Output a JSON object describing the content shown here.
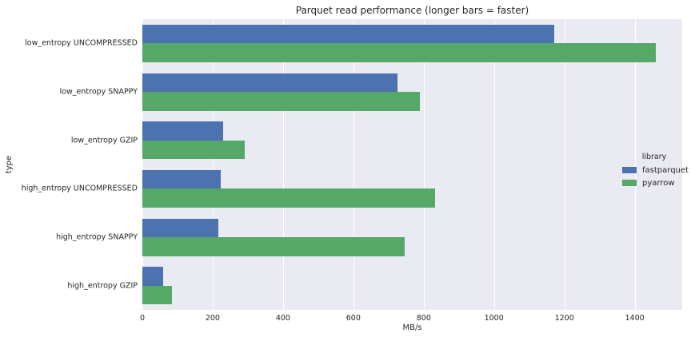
{
  "chart_data": {
    "type": "bar",
    "orientation": "horizontal",
    "title": "Parquet read performance (longer bars = faster)",
    "xlabel": "MB/s",
    "ylabel": "type",
    "categories": [
      "low_entropy UNCOMPRESSED",
      "low_entropy SNAPPY",
      "low_entropy GZIP",
      "high_entropy UNCOMPRESSED",
      "high_entropy SNAPPY",
      "high_entropy GZIP"
    ],
    "series": [
      {
        "name": "fastparquet",
        "color": "#4c72b0",
        "values": [
          1170,
          725,
          230,
          222,
          215,
          60
        ]
      },
      {
        "name": "pyarrow",
        "color": "#55a868",
        "values": [
          1460,
          790,
          290,
          832,
          745,
          85
        ]
      }
    ],
    "xlim": [
      0,
      1535
    ],
    "xticks": [
      0,
      200,
      400,
      600,
      800,
      1000,
      1200,
      1400
    ],
    "legend": {
      "title": "library",
      "position": "right"
    },
    "grid": true,
    "colors": {
      "plot_background": "#eaeaf2",
      "gridline": "#ffffff",
      "text": "#262626",
      "figure_background": "#ffffff"
    }
  }
}
